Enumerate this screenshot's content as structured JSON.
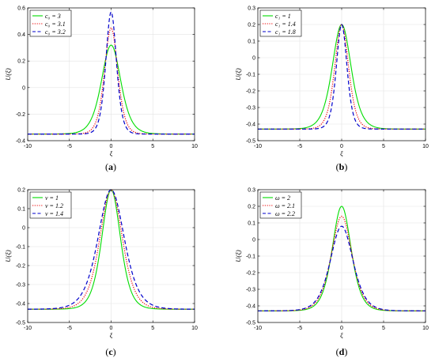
{
  "chart_data": [
    {
      "type": "line",
      "caption_letter": "a",
      "xlabel": "ξ",
      "ylabel": "U(ξ)",
      "xlim": [
        -10,
        10
      ],
      "ylim": [
        -0.4,
        0.6
      ],
      "xticks": [
        -10,
        -5,
        0,
        5,
        10
      ],
      "yticks": [
        -0.4,
        -0.2,
        0,
        0.2,
        0.4,
        0.6
      ],
      "ytick_labels": [
        "-0.4",
        "-0.2",
        "0",
        "0.2",
        "0.4",
        "0.6"
      ],
      "grid": true,
      "legend_position": "top-left",
      "series": [
        {
          "name": "c₀ = 3",
          "color": "#00dd00",
          "style": "solid",
          "base": -0.35,
          "peak": 0.32,
          "width": 1.55
        },
        {
          "name": "c₀ = 3.1",
          "color": "#ee0000",
          "style": "dotted",
          "base": -0.35,
          "peak": 0.45,
          "width": 1.05
        },
        {
          "name": "c₀ = 3.2",
          "color": "#0000cc",
          "style": "dashed",
          "base": -0.35,
          "peak": 0.57,
          "width": 0.85
        }
      ]
    },
    {
      "type": "line",
      "caption_letter": "b",
      "xlabel": "ξ",
      "ylabel": "U(ξ)",
      "xlim": [
        -10,
        10
      ],
      "ylim": [
        -0.5,
        0.3
      ],
      "xticks": [
        -10,
        -5,
        0,
        5,
        10
      ],
      "yticks": [
        -0.5,
        -0.4,
        -0.3,
        -0.2,
        -0.1,
        0,
        0.1,
        0.2,
        0.3
      ],
      "ytick_labels": [
        "-0.5",
        "-0.4",
        "-0.3",
        "-0.2",
        "-0.1",
        "0",
        "0.1",
        "0.2",
        "0.3"
      ],
      "grid": true,
      "legend_position": "top-left",
      "series": [
        {
          "name": "c₁ = 1",
          "color": "#00dd00",
          "style": "solid",
          "base": -0.43,
          "peak": 0.2,
          "width": 1.5
        },
        {
          "name": "c₁ = 1.4",
          "color": "#ee0000",
          "style": "dotted",
          "base": -0.43,
          "peak": 0.2,
          "width": 1.1
        },
        {
          "name": "c₁ = 1.8",
          "color": "#0000cc",
          "style": "dashed",
          "base": -0.43,
          "peak": 0.2,
          "width": 0.85
        }
      ]
    },
    {
      "type": "line",
      "caption_letter": "c",
      "xlabel": "ξ",
      "ylabel": "U(ξ)",
      "xlim": [
        -10,
        10
      ],
      "ylim": [
        -0.5,
        0.2
      ],
      "xticks": [
        -10,
        -5,
        0,
        5,
        10
      ],
      "yticks": [
        -0.5,
        -0.4,
        -0.3,
        -0.2,
        -0.1,
        0,
        0.1,
        0.2
      ],
      "ytick_labels": [
        "-0.5",
        "-0.4",
        "-0.3",
        "-0.2",
        "-0.1",
        "0",
        "0.1",
        "0.2"
      ],
      "grid": true,
      "legend_position": "top-left",
      "series": [
        {
          "name": "ν = 1",
          "color": "#00dd00",
          "style": "solid",
          "base": -0.43,
          "peak": 0.2,
          "width": 1.5
        },
        {
          "name": "ν = 1.2",
          "color": "#ee0000",
          "style": "dotted",
          "base": -0.43,
          "peak": 0.2,
          "width": 1.8
        },
        {
          "name": "ν = 1.4",
          "color": "#0000cc",
          "style": "dashed",
          "base": -0.43,
          "peak": 0.2,
          "width": 2.1
        }
      ]
    },
    {
      "type": "line",
      "caption_letter": "d",
      "xlabel": "ξ",
      "ylabel": "U(ξ)",
      "xlim": [
        -10,
        10
      ],
      "ylim": [
        -0.5,
        0.3
      ],
      "xticks": [
        -10,
        -5,
        0,
        5,
        10
      ],
      "yticks": [
        -0.5,
        -0.4,
        -0.3,
        -0.2,
        -0.1,
        0,
        0.1,
        0.2,
        0.3
      ],
      "ytick_labels": [
        "-0.5",
        "-0.4",
        "-0.3",
        "-0.2",
        "-0.1",
        "0",
        "0.1",
        "0.2",
        "0.3"
      ],
      "grid": true,
      "legend_position": "top-left",
      "series": [
        {
          "name": "ω = 2",
          "color": "#00dd00",
          "style": "solid",
          "base": -0.43,
          "peak": 0.2,
          "width": 1.5
        },
        {
          "name": "ω = 2.1",
          "color": "#ee0000",
          "style": "dotted",
          "base": -0.43,
          "peak": 0.14,
          "width": 1.65
        },
        {
          "name": "ω = 2.2",
          "color": "#0000cc",
          "style": "dashed",
          "base": -0.43,
          "peak": 0.08,
          "width": 1.8
        }
      ]
    }
  ]
}
